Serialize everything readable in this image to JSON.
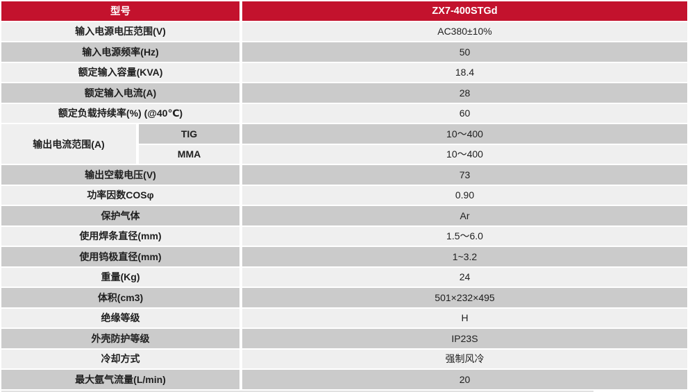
{
  "colors": {
    "header_red": "#c3122d",
    "row_light": "#efefef",
    "row_dark": "#cbcbcb",
    "header_text": "#ffffff",
    "body_text": "#1e1e1e"
  },
  "table": {
    "header": {
      "label": "型号",
      "value": "ZX7-400STGd"
    },
    "rows": [
      {
        "label": "输入电源电压范围(V)",
        "value": "AC380±10%",
        "shade": "light"
      },
      {
        "label": "输入电源频率(Hz)",
        "value": "50",
        "shade": "dark"
      },
      {
        "label": "额定输入容量(KVA)",
        "value": "18.4",
        "shade": "light"
      },
      {
        "label": "额定输入电流(A)",
        "value": "28",
        "shade": "dark"
      },
      {
        "label": "额定负载持续率(%) (@40℃)",
        "value": "60",
        "shade": "light"
      },
      {
        "type": "group",
        "label": "输出电流范围(A)",
        "sub": [
          {
            "label": "TIG",
            "value": "10〜400",
            "shade": "dark"
          },
          {
            "label": "MMA",
            "value": "10〜400",
            "shade": "light"
          }
        ]
      },
      {
        "label": "输出空载电压(V)",
        "value": "73",
        "shade": "dark"
      },
      {
        "label": "功率因数COSφ",
        "value": "0.90",
        "shade": "light"
      },
      {
        "label": "保护气体",
        "value": "Ar",
        "shade": "dark"
      },
      {
        "label": "使用焊条直径(mm)",
        "value": "1.5〜6.0",
        "shade": "light"
      },
      {
        "label": "使用钨极直径(mm)",
        "value": "1~3.2",
        "shade": "dark"
      },
      {
        "label": "重量(Kg)",
        "value": "24",
        "shade": "light"
      },
      {
        "label": "体积(cm3)",
        "value": "501×232×495",
        "shade": "dark"
      },
      {
        "label": "绝缘等级",
        "value": "H",
        "shade": "light"
      },
      {
        "label": "外壳防护等级",
        "value": "IP23S",
        "shade": "dark"
      },
      {
        "label": "冷却方式",
        "value": "强制风冷",
        "shade": "light"
      },
      {
        "label": "最大氩气流量(L/min)",
        "value": "20",
        "shade": "dark"
      }
    ]
  }
}
